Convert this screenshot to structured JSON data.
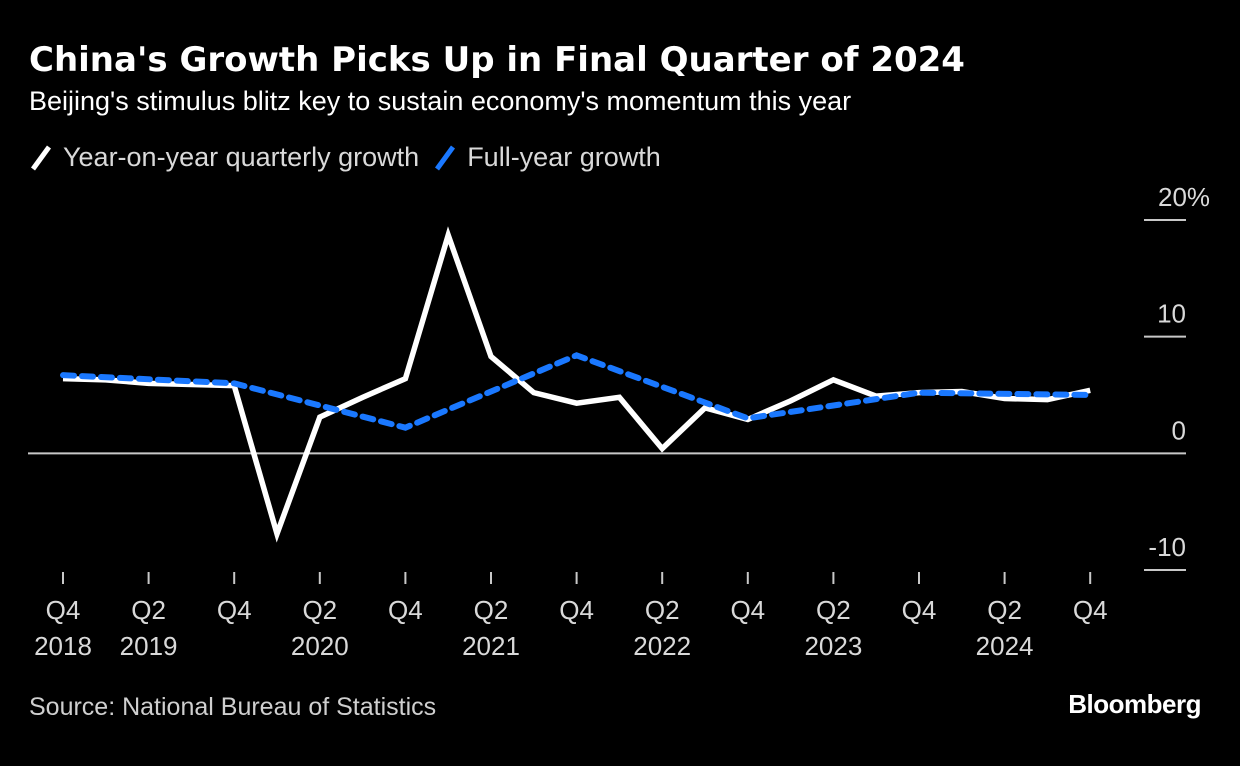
{
  "header": {
    "title": "China's Growth Picks Up in Final Quarter of 2024",
    "subtitle": "Beijing's stimulus blitz key to sustain economy's momentum this year"
  },
  "legend": [
    {
      "label": "Year-on-year quarterly growth",
      "color": "#ffffff",
      "icon": "slash-white-icon"
    },
    {
      "label": "Full-year growth",
      "color": "#1a78ff",
      "icon": "slash-blue-icon"
    }
  ],
  "footer": {
    "source": "Source: National Bureau of Statistics",
    "brand": "Bloomberg"
  },
  "chart_data": {
    "type": "line",
    "title": "China's Growth Picks Up in Final Quarter of 2024",
    "subtitle": "Beijing's stimulus blitz key to sustain economy's momentum this year",
    "xlabel": "",
    "ylabel": "",
    "ylim": [
      -10,
      20
    ],
    "yticks": [
      {
        "value": 20,
        "label": "20%"
      },
      {
        "value": 10,
        "label": "10"
      },
      {
        "value": 0,
        "label": "0"
      },
      {
        "value": -10,
        "label": "-10"
      }
    ],
    "x": [
      "2018Q4",
      "2019Q1",
      "2019Q2",
      "2019Q3",
      "2019Q4",
      "2020Q1",
      "2020Q2",
      "2020Q3",
      "2020Q4",
      "2021Q1",
      "2021Q2",
      "2021Q3",
      "2021Q4",
      "2022Q1",
      "2022Q2",
      "2022Q3",
      "2022Q4",
      "2023Q1",
      "2023Q2",
      "2023Q3",
      "2023Q4",
      "2024Q1",
      "2024Q2",
      "2024Q3",
      "2024Q4"
    ],
    "xticks": [
      {
        "index": 0,
        "q": "Q4",
        "year": "2018"
      },
      {
        "index": 2,
        "q": "Q2",
        "year": "2019"
      },
      {
        "index": 4,
        "q": "Q4",
        "year": ""
      },
      {
        "index": 6,
        "q": "Q2",
        "year": "2020"
      },
      {
        "index": 8,
        "q": "Q4",
        "year": ""
      },
      {
        "index": 10,
        "q": "Q2",
        "year": "2021"
      },
      {
        "index": 12,
        "q": "Q4",
        "year": ""
      },
      {
        "index": 14,
        "q": "Q2",
        "year": "2022"
      },
      {
        "index": 16,
        "q": "Q4",
        "year": ""
      },
      {
        "index": 18,
        "q": "Q2",
        "year": "2023"
      },
      {
        "index": 20,
        "q": "Q4",
        "year": ""
      },
      {
        "index": 22,
        "q": "Q2",
        "year": "2024"
      },
      {
        "index": 24,
        "q": "Q4",
        "year": ""
      }
    ],
    "series": [
      {
        "name": "Year-on-year quarterly growth",
        "color": "#ffffff",
        "style": "solid",
        "indices": [
          0,
          1,
          2,
          3,
          4,
          5,
          6,
          7,
          8,
          9,
          10,
          11,
          12,
          13,
          14,
          15,
          16,
          17,
          18,
          19,
          20,
          21,
          22,
          23,
          24
        ],
        "values": [
          6.4,
          6.3,
          6.0,
          5.9,
          5.8,
          -6.9,
          3.1,
          4.8,
          6.4,
          18.7,
          8.3,
          5.2,
          4.3,
          4.8,
          0.4,
          3.9,
          2.9,
          4.5,
          6.3,
          4.9,
          5.2,
          5.3,
          4.7,
          4.6,
          5.4
        ]
      },
      {
        "name": "Full-year growth",
        "color": "#1a78ff",
        "style": "dashed",
        "indices": [
          0,
          4,
          8,
          12,
          16,
          20,
          24
        ],
        "values": [
          6.7,
          6.0,
          2.2,
          8.4,
          3.0,
          5.2,
          5.0
        ]
      }
    ],
    "grid": true,
    "legend_position": "top-left"
  }
}
